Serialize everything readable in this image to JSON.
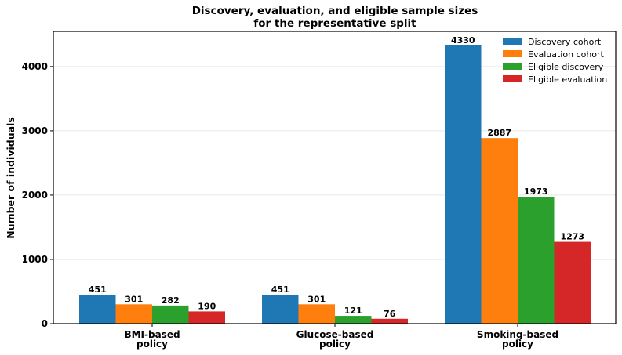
{
  "chart_data": {
    "type": "bar",
    "title": "Discovery, evaluation, and eligible sample sizes",
    "subtitle": "for the representative split",
    "xlabel": "",
    "ylabel": "Number of individuals",
    "categories": [
      [
        "BMI-based",
        "policy"
      ],
      [
        "Glucose-based",
        "policy"
      ],
      [
        "Smoking-based",
        "policy"
      ]
    ],
    "series": [
      {
        "name": "Discovery cohort",
        "color": "#1f77b4",
        "values": [
          451,
          451,
          4330
        ]
      },
      {
        "name": "Evaluation cohort",
        "color": "#ff7f0e",
        "values": [
          301,
          301,
          2887
        ]
      },
      {
        "name": "Eligible discovery",
        "color": "#2ca02c",
        "values": [
          282,
          121,
          1973
        ]
      },
      {
        "name": "Eligible evaluation",
        "color": "#d62728",
        "values": [
          190,
          76,
          1273
        ]
      }
    ],
    "ylim": [
      0,
      4547
    ],
    "yticks": [
      0,
      1000,
      2000,
      3000,
      4000
    ],
    "grid": "horizontal",
    "legend": "top-right",
    "data_labels": true
  }
}
